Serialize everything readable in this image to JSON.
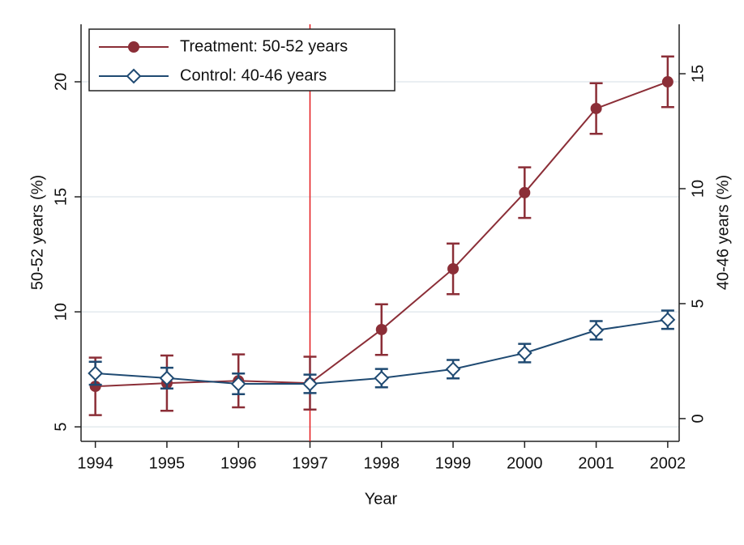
{
  "chart_data": {
    "type": "line",
    "x_label": "Year",
    "y_label": "50-52 years (%)",
    "y2_label": "40-46 years (%)",
    "x": [
      1994,
      1995,
      1996,
      1997,
      1998,
      1999,
      2000,
      2001,
      2002
    ],
    "xlim": [
      1993.8,
      2002.16
    ],
    "xticks": [
      1994,
      1995,
      1996,
      1997,
      1998,
      1999,
      2000,
      2001,
      2002
    ],
    "ylim": [
      4.37,
      22.5
    ],
    "yticks": [
      5,
      10,
      15,
      20
    ],
    "y2lim": [
      -0.99,
      17.15
    ],
    "y2ticks": [
      0,
      5,
      10,
      15
    ],
    "grid": true,
    "legend": "top-left",
    "vline": {
      "x": 1997,
      "color": "#e41a1c"
    },
    "series": [
      {
        "name": "Treatment: 50-52 years",
        "color": "#8b2e37",
        "marker": "circle",
        "values": [
          6.76,
          6.9,
          7.0,
          6.9,
          9.23,
          11.87,
          15.18,
          18.84,
          20.0
        ],
        "errors": [
          1.25,
          1.2,
          1.15,
          1.15,
          1.1,
          1.1,
          1.1,
          1.1,
          1.1
        ]
      },
      {
        "name": "Control: 40-46 years",
        "color": "#1f4a72",
        "marker": "diamond",
        "axis": "y2",
        "values": [
          1.97,
          1.76,
          1.51,
          1.51,
          1.76,
          2.15,
          2.85,
          3.84,
          4.3
        ],
        "errors": [
          0.5,
          0.45,
          0.45,
          0.4,
          0.4,
          0.4,
          0.4,
          0.4,
          0.4
        ]
      }
    ]
  }
}
